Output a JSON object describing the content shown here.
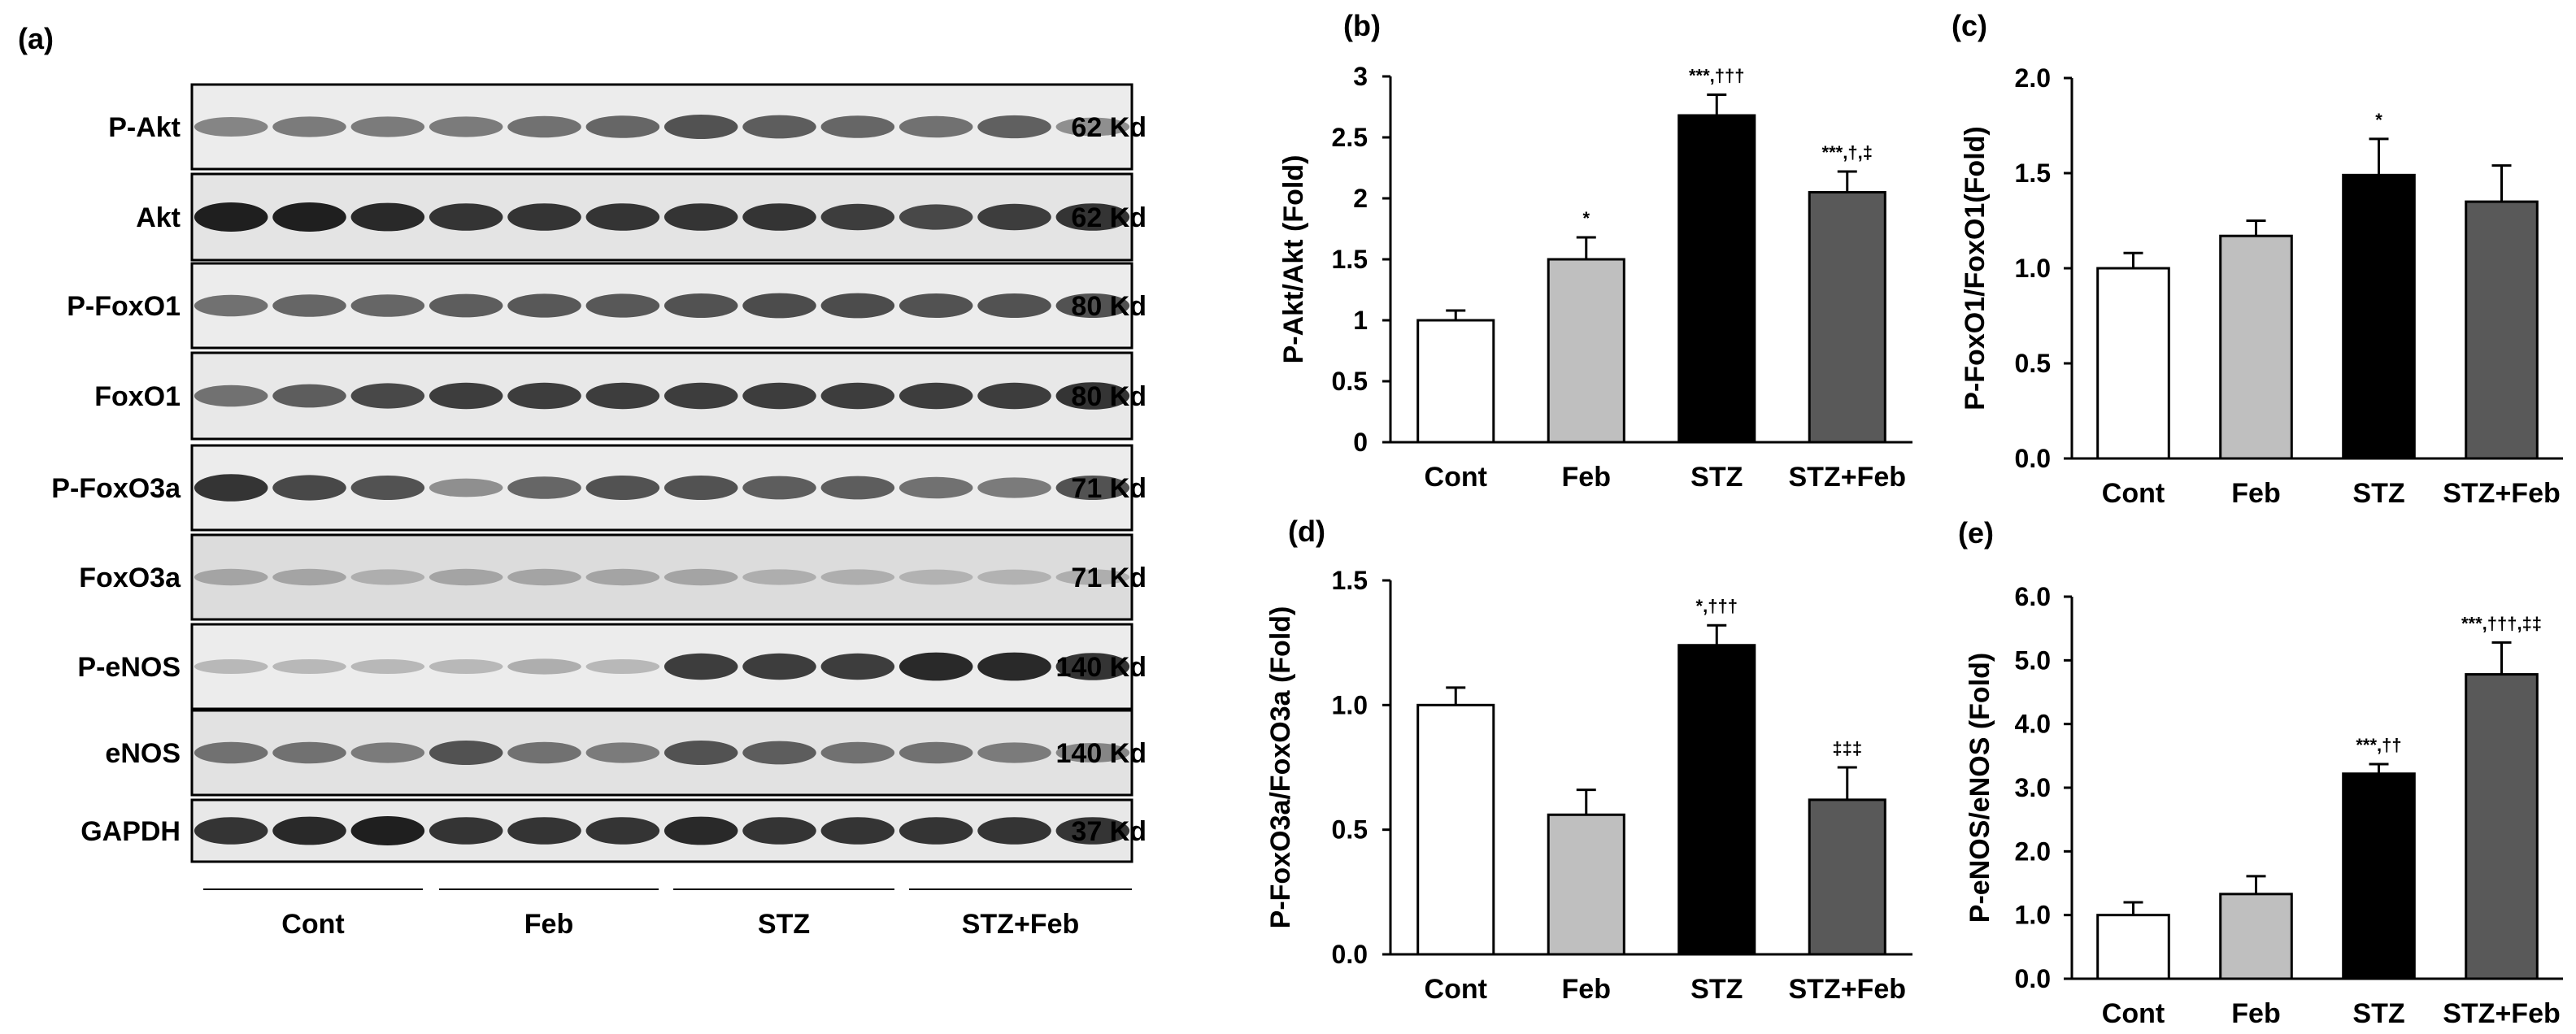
{
  "figure": {
    "blot": {
      "panel_label": "(a)",
      "rows": [
        {
          "protein": "P-Akt",
          "size": "62 Kd",
          "intensity": [
            0.5,
            0.55,
            0.55,
            0.55,
            0.6,
            0.65,
            0.75,
            0.7,
            0.65,
            0.6,
            0.68,
            0.45
          ],
          "bg": "#ececec"
        },
        {
          "protein": "Akt",
          "size": "62 Kd",
          "intensity": [
            1.0,
            1.0,
            0.95,
            0.9,
            0.9,
            0.9,
            0.9,
            0.9,
            0.85,
            0.8,
            0.85,
            0.9
          ],
          "bg": "#e4e4e4"
        },
        {
          "protein": "P-FoxO1",
          "size": "80 Kd",
          "intensity": [
            0.6,
            0.65,
            0.65,
            0.7,
            0.72,
            0.72,
            0.75,
            0.78,
            0.78,
            0.75,
            0.75,
            0.75
          ],
          "bg": "#ececec"
        },
        {
          "protein": "FoxO1",
          "size": "80 Kd",
          "intensity": [
            0.6,
            0.7,
            0.8,
            0.85,
            0.85,
            0.85,
            0.85,
            0.85,
            0.85,
            0.85,
            0.85,
            0.9
          ],
          "bg": "#e8e8e8"
        },
        {
          "protein": "P-FoxO3a",
          "size": "71 Kd",
          "intensity": [
            0.9,
            0.8,
            0.75,
            0.45,
            0.65,
            0.75,
            0.75,
            0.7,
            0.7,
            0.6,
            0.55,
            0.75
          ],
          "bg": "#ececec"
        },
        {
          "protein": "FoxO3a",
          "size": "71 Kd",
          "intensity": [
            0.35,
            0.35,
            0.3,
            0.35,
            0.35,
            0.35,
            0.35,
            0.3,
            0.3,
            0.28,
            0.28,
            0.3
          ],
          "bg": "#dcdcdc"
        },
        {
          "protein": "P-eNOS",
          "size": "140 Kd",
          "intensity": [
            0.25,
            0.25,
            0.25,
            0.25,
            0.3,
            0.25,
            0.85,
            0.85,
            0.85,
            0.95,
            0.95,
            0.9
          ],
          "bg": "#ececec"
        },
        {
          "protein": "eNOS",
          "size": "140 Kd",
          "intensity": [
            0.6,
            0.6,
            0.55,
            0.75,
            0.6,
            0.55,
            0.75,
            0.7,
            0.6,
            0.6,
            0.55,
            0.5
          ],
          "bg": "#e2e2e2"
        },
        {
          "protein": "GAPDH",
          "size": "37 Kd",
          "intensity": [
            0.9,
            0.95,
            1.0,
            0.9,
            0.9,
            0.9,
            0.95,
            0.9,
            0.9,
            0.9,
            0.9,
            0.9
          ],
          "bg": "#e8e8e8"
        }
      ],
      "groups": [
        "Cont",
        "Feb",
        "STZ",
        "STZ+Feb"
      ]
    }
  },
  "chart_data": [
    {
      "panel": "(b)",
      "type": "bar",
      "categories": [
        "Cont",
        "Feb",
        "STZ",
        "STZ+Feb"
      ],
      "values": [
        1.0,
        1.5,
        2.68,
        2.05
      ],
      "errors": [
        0.08,
        0.18,
        0.17,
        0.17
      ],
      "annotations": [
        "",
        "*",
        "***,†††",
        "***,†,‡"
      ],
      "ylabel": "P-Akt/Akt (Fold)",
      "ylim": [
        0,
        3
      ],
      "yticks": [
        "0",
        "0.5",
        "1",
        "1.5",
        "2",
        "2.5",
        "3"
      ],
      "colors": [
        "#ffffff",
        "#bfbfbf",
        "#000000",
        "#595959"
      ]
    },
    {
      "panel": "(c)",
      "type": "bar",
      "categories": [
        "Cont",
        "Feb",
        "STZ",
        "STZ+Feb"
      ],
      "values": [
        1.0,
        1.17,
        1.49,
        1.35
      ],
      "errors": [
        0.08,
        0.08,
        0.19,
        0.19
      ],
      "annotations": [
        "",
        "",
        "*",
        ""
      ],
      "ylabel": "P-FoxO1/FoxO1(Fold)",
      "ylim": [
        0,
        2
      ],
      "yticks": [
        "0.0",
        "0.5",
        "1.0",
        "1.5",
        "2.0"
      ],
      "colors": [
        "#ffffff",
        "#bfbfbf",
        "#000000",
        "#595959"
      ]
    },
    {
      "panel": "(d)",
      "type": "bar",
      "categories": [
        "Cont",
        "Feb",
        "STZ",
        "STZ+Feb"
      ],
      "values": [
        1.0,
        0.56,
        1.24,
        0.62
      ],
      "errors": [
        0.07,
        0.1,
        0.08,
        0.13
      ],
      "annotations": [
        "",
        "",
        "*,†††",
        "‡‡‡"
      ],
      "ylabel": "P-FoxO3a/FoxO3a (Fold)",
      "ylim": [
        0,
        1.5
      ],
      "yticks": [
        "0.0",
        "0.5",
        "1.0",
        "1.5"
      ],
      "colors": [
        "#ffffff",
        "#bfbfbf",
        "#000000",
        "#595959"
      ]
    },
    {
      "panel": "(e)",
      "type": "bar",
      "categories": [
        "Cont",
        "Feb",
        "STZ",
        "STZ+Feb"
      ],
      "values": [
        1.0,
        1.33,
        3.22,
        4.78
      ],
      "errors": [
        0.2,
        0.28,
        0.15,
        0.5
      ],
      "annotations": [
        "",
        "",
        "***,††",
        "***,†††,‡‡"
      ],
      "ylabel": "P-eNOS/eNOS (Fold)",
      "ylim": [
        0,
        6
      ],
      "yticks": [
        "0.0",
        "1.0",
        "2.0",
        "3.0",
        "4.0",
        "5.0",
        "6.0"
      ],
      "colors": [
        "#ffffff",
        "#bfbfbf",
        "#000000",
        "#595959"
      ]
    }
  ]
}
